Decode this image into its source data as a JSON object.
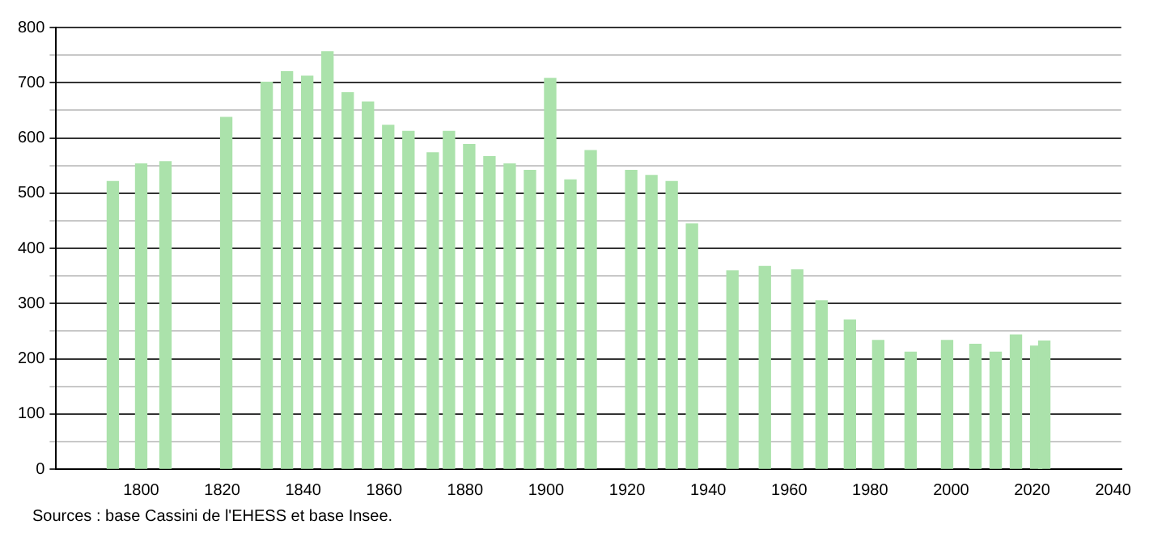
{
  "chart_data": {
    "type": "bar",
    "x": [
      1793,
      1800,
      1806,
      1821,
      1831,
      1836,
      1841,
      1846,
      1851,
      1856,
      1861,
      1866,
      1872,
      1876,
      1881,
      1886,
      1891,
      1896,
      1901,
      1906,
      1911,
      1921,
      1926,
      1931,
      1936,
      1946,
      1954,
      1962,
      1968,
      1975,
      1982,
      1990,
      1999,
      2006,
      2011,
      2016,
      2021,
      2023
    ],
    "values": [
      521,
      553,
      557,
      637,
      701,
      720,
      712,
      756,
      682,
      665,
      623,
      612,
      573,
      612,
      588,
      566,
      553,
      541,
      708,
      524,
      577,
      541,
      532,
      521,
      444,
      359,
      367,
      361,
      305,
      270,
      233,
      212,
      233,
      226,
      212,
      243,
      223,
      232
    ],
    "color": "#abe2ab",
    "xlim": [
      1779,
      2042
    ],
    "xticks": [
      1800,
      1820,
      1840,
      1860,
      1880,
      1900,
      1920,
      1940,
      1960,
      1980,
      2000,
      2020,
      2040
    ],
    "ylim": [
      0,
      800
    ],
    "yticks": [
      0,
      {
        "value": 50,
        "label": null
      },
      100,
      {
        "value": 150,
        "label": null
      },
      200,
      {
        "value": 250,
        "label": null
      },
      300,
      {
        "value": 350,
        "label": null
      },
      400,
      {
        "value": 450,
        "label": null
      },
      500,
      {
        "value": 550,
        "label": null
      },
      600,
      {
        "value": 650,
        "label": null
      },
      700,
      {
        "value": 750,
        "label": null
      },
      800
    ],
    "grid": "y",
    "annotations": [
      "Sources : base Cassini de l'EHESS et base Insee."
    ]
  }
}
